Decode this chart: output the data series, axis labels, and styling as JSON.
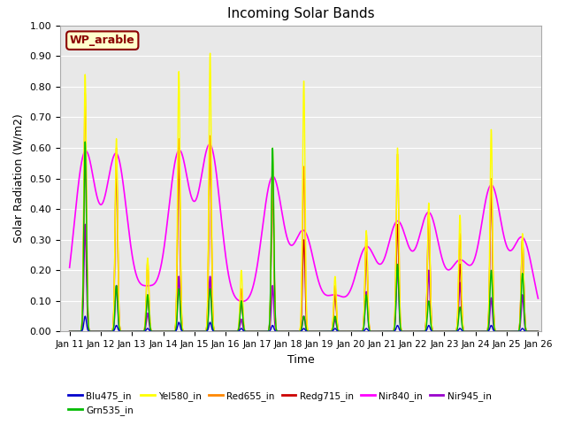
{
  "title": "Incoming Solar Bands",
  "xlabel": "Time",
  "ylabel": "Solar Radiation (W/m2)",
  "annotation": "WP_arable",
  "ylim": [
    0.0,
    1.0
  ],
  "yticks": [
    0.0,
    0.1,
    0.2,
    0.3,
    0.4,
    0.5,
    0.6,
    0.7,
    0.8,
    0.9,
    1.0
  ],
  "bg_color": "#e8e8e8",
  "fig_color": "#ffffff",
  "series_order_plot": [
    "Nir840_in",
    "Nir945_in",
    "Red655_in",
    "Redg715_in",
    "Yel580_in",
    "Grn535_in",
    "Blu475_in"
  ],
  "series": {
    "Blu475_in": {
      "color": "#0000cc",
      "lw": 1.0,
      "zorder": 9
    },
    "Grn535_in": {
      "color": "#00bb00",
      "lw": 1.0,
      "zorder": 8
    },
    "Yel580_in": {
      "color": "#ffff00",
      "lw": 1.0,
      "zorder": 7
    },
    "Red655_in": {
      "color": "#ff8800",
      "lw": 1.0,
      "zorder": 6
    },
    "Redg715_in": {
      "color": "#cc0000",
      "lw": 1.0,
      "zorder": 5
    },
    "Nir840_in": {
      "color": "#ff00ff",
      "lw": 1.2,
      "zorder": 4
    },
    "Nir945_in": {
      "color": "#9900cc",
      "lw": 1.2,
      "zorder": 3
    }
  },
  "days": [
    11,
    12,
    13,
    14,
    15,
    16,
    17,
    18,
    19,
    20,
    21,
    22,
    23,
    24,
    25,
    26
  ],
  "day_peaks": {
    "11": {
      "Yel580_in": 0.84,
      "Red655_in": 0.78,
      "Redg715_in": 0.6,
      "Nir840_in": 0.58,
      "Nir945_in": 0.35,
      "Grn535_in": 0.62,
      "Blu475_in": 0.05
    },
    "12": {
      "Yel580_in": 0.63,
      "Red655_in": 0.6,
      "Redg715_in": 0.55,
      "Nir840_in": 0.57,
      "Nir945_in": 0.15,
      "Grn535_in": 0.15,
      "Blu475_in": 0.02
    },
    "13": {
      "Yel580_in": 0.24,
      "Red655_in": 0.23,
      "Redg715_in": 0.12,
      "Nir840_in": 0.13,
      "Nir945_in": 0.06,
      "Grn535_in": 0.12,
      "Blu475_in": 0.01
    },
    "14": {
      "Yel580_in": 0.85,
      "Red655_in": 0.63,
      "Redg715_in": 0.57,
      "Nir840_in": 0.58,
      "Nir945_in": 0.18,
      "Grn535_in": 0.14,
      "Blu475_in": 0.03
    },
    "15": {
      "Yel580_in": 0.91,
      "Red655_in": 0.64,
      "Redg715_in": 0.63,
      "Nir840_in": 0.6,
      "Nir945_in": 0.18,
      "Grn535_in": 0.14,
      "Blu475_in": 0.03
    },
    "16": {
      "Yel580_in": 0.2,
      "Red655_in": 0.14,
      "Redg715_in": 0.1,
      "Nir840_in": 0.08,
      "Nir945_in": 0.04,
      "Grn535_in": 0.1,
      "Blu475_in": 0.01
    },
    "17": {
      "Yel580_in": 0.6,
      "Red655_in": 0.5,
      "Redg715_in": 0.48,
      "Nir840_in": 0.5,
      "Nir945_in": 0.15,
      "Grn535_in": 0.6,
      "Blu475_in": 0.02
    },
    "18": {
      "Yel580_in": 0.82,
      "Red655_in": 0.54,
      "Redg715_in": 0.3,
      "Nir840_in": 0.32,
      "Nir945_in": 0.05,
      "Grn535_in": 0.05,
      "Blu475_in": 0.01
    },
    "19": {
      "Yel580_in": 0.18,
      "Red655_in": 0.15,
      "Redg715_in": 0.12,
      "Nir840_in": 0.11,
      "Nir945_in": 0.04,
      "Grn535_in": 0.05,
      "Blu475_in": 0.01
    },
    "20": {
      "Yel580_in": 0.33,
      "Red655_in": 0.32,
      "Redg715_in": 0.26,
      "Nir840_in": 0.27,
      "Nir945_in": 0.13,
      "Grn535_in": 0.12,
      "Blu475_in": 0.01
    },
    "21": {
      "Yel580_in": 0.6,
      "Red655_in": 0.58,
      "Redg715_in": 0.35,
      "Nir840_in": 0.35,
      "Nir945_in": 0.21,
      "Grn535_in": 0.22,
      "Blu475_in": 0.02
    },
    "22": {
      "Yel580_in": 0.42,
      "Red655_in": 0.4,
      "Redg715_in": 0.38,
      "Nir840_in": 0.38,
      "Nir945_in": 0.2,
      "Grn535_in": 0.1,
      "Blu475_in": 0.02
    },
    "23": {
      "Yel580_in": 0.38,
      "Red655_in": 0.32,
      "Redg715_in": 0.22,
      "Nir840_in": 0.22,
      "Nir945_in": 0.16,
      "Grn535_in": 0.08,
      "Blu475_in": 0.01
    },
    "24": {
      "Yel580_in": 0.66,
      "Red655_in": 0.5,
      "Redg715_in": 0.46,
      "Nir840_in": 0.47,
      "Nir945_in": 0.11,
      "Grn535_in": 0.2,
      "Blu475_in": 0.02
    },
    "25": {
      "Yel580_in": 0.32,
      "Red655_in": 0.3,
      "Redg715_in": 0.3,
      "Nir840_in": 0.3,
      "Nir945_in": 0.12,
      "Grn535_in": 0.19,
      "Blu475_in": 0.01
    },
    "26": {
      "Yel580_in": 0.0,
      "Red655_in": 0.0,
      "Redg715_in": 0.0,
      "Nir840_in": 0.0,
      "Nir945_in": 0.0,
      "Grn535_in": 0.0,
      "Blu475_in": 0.0
    }
  },
  "nir840_daytime_sigma": 0.35,
  "peak_sigma": 0.04,
  "legend_entries": [
    {
      "label": "Blu475_in",
      "color": "#0000cc"
    },
    {
      "label": "Grn535_in",
      "color": "#00bb00"
    },
    {
      "label": "Yel580_in",
      "color": "#ffff00"
    },
    {
      "label": "Red655_in",
      "color": "#ff8800"
    },
    {
      "label": "Redg715_in",
      "color": "#cc0000"
    },
    {
      "label": "Nir840_in",
      "color": "#ff00ff"
    },
    {
      "label": "Nir945_in",
      "color": "#9900cc"
    }
  ]
}
